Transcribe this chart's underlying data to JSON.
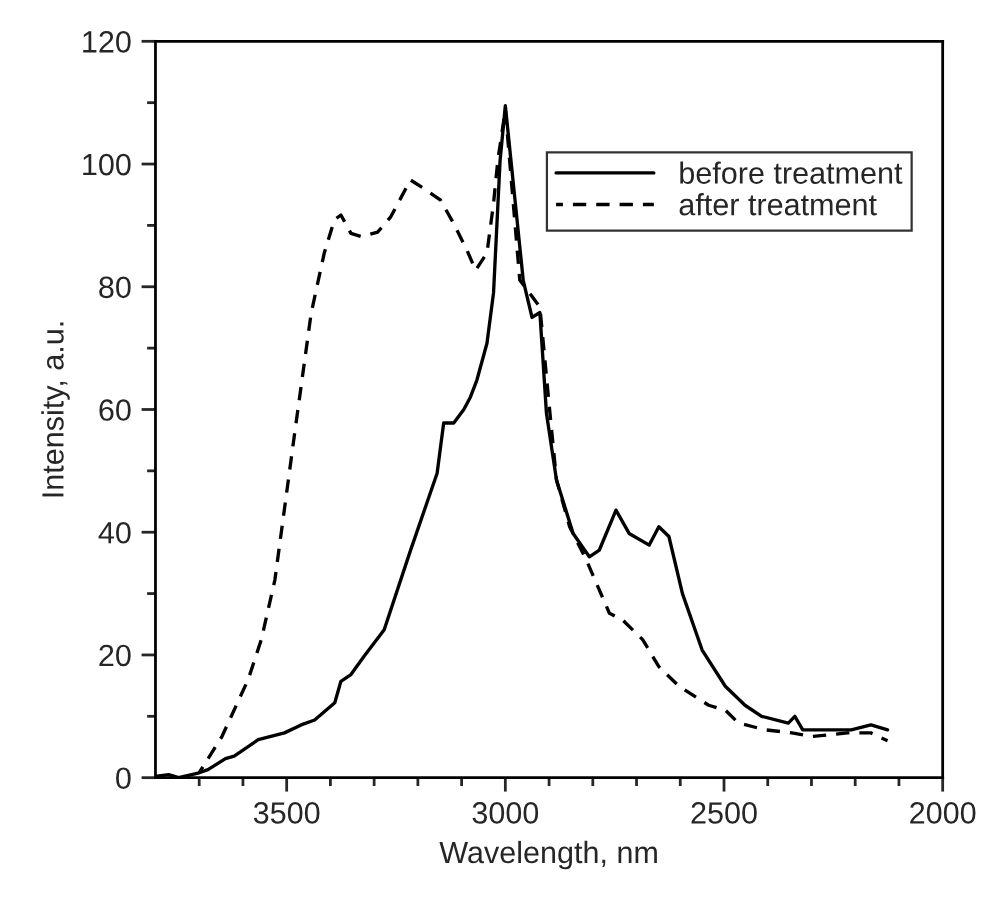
{
  "chart_data": {
    "type": "line",
    "xlabel": "Wavelength, nm",
    "ylabel": "Intensity, a.u.",
    "xlim": [
      3800,
      2000
    ],
    "ylim": [
      0,
      120
    ],
    "xticks": [
      {
        "value": 3700,
        "label": null
      },
      {
        "value": 3600,
        "label": null
      },
      3500,
      {
        "value": 3400,
        "label": null
      },
      {
        "value": 3300,
        "label": null
      },
      {
        "value": 3200,
        "label": null
      },
      {
        "value": 3100,
        "label": null
      },
      3000,
      {
        "value": 2900,
        "label": null
      },
      {
        "value": 2800,
        "label": null
      },
      {
        "value": 2700,
        "label": null
      },
      {
        "value": 2600,
        "label": null
      },
      2500,
      {
        "value": 2400,
        "label": null
      },
      {
        "value": 2300,
        "label": null
      },
      {
        "value": 2200,
        "label": null
      },
      {
        "value": 2100,
        "label": null
      },
      2000
    ],
    "yticks": [
      0,
      {
        "value": 10,
        "label": null
      },
      20,
      {
        "value": 30,
        "label": null
      },
      40,
      {
        "value": 50,
        "label": null
      },
      60,
      {
        "value": 70,
        "label": null
      },
      80,
      {
        "value": 90,
        "label": null
      },
      100,
      {
        "value": 110,
        "label": null
      },
      120
    ],
    "grid": false,
    "legend": "top right",
    "series": [
      {
        "name": "before treatment",
        "color": "#000000",
        "line_style": "solid",
        "x": [
          3800,
          3770,
          3747,
          3700,
          3680,
          3640,
          3620,
          3565,
          3505,
          3467,
          3436,
          3390,
          3376,
          3353,
          3323,
          3277,
          3217,
          3156,
          3141,
          3118,
          3095,
          3080,
          3065,
          3042,
          3027,
          3012,
          3000,
          2959,
          2939,
          2921,
          2906,
          2883,
          2845,
          2808,
          2785,
          2747,
          2717,
          2671,
          2649,
          2626,
          2595,
          2550,
          2497,
          2452,
          2414,
          2353,
          2338,
          2320,
          2209,
          2164,
          2126
        ],
        "values": [
          0.2,
          0.5,
          0,
          0.8,
          1.3,
          3.1,
          3.5,
          6.2,
          7.3,
          8.6,
          9.4,
          12.2,
          15.7,
          16.8,
          19.8,
          24.1,
          37,
          49.6,
          57.8,
          57.8,
          60,
          62,
          64.8,
          70.8,
          79,
          100.6,
          109.5,
          81,
          75,
          75.8,
          59.4,
          48.5,
          39.8,
          36,
          37.1,
          43.6,
          39.8,
          37.9,
          40.9,
          39.3,
          30,
          20.8,
          14.9,
          11.8,
          10,
          8.9,
          10,
          7.8,
          7.8,
          8.6,
          7.8
        ]
      },
      {
        "name": "after treatment",
        "color": "#000000",
        "line_style": "dashed",
        "x": [
          3700,
          3648,
          3588,
          3558,
          3527,
          3482,
          3444,
          3414,
          3391,
          3376,
          3353,
          3330,
          3292,
          3262,
          3217,
          3186,
          3148,
          3118,
          3088,
          3068,
          3042,
          3027,
          3017,
          3000,
          2967,
          2921,
          2898,
          2883,
          2853,
          2815,
          2762,
          2732,
          2686,
          2649,
          2603,
          2535,
          2497,
          2467,
          2406,
          2345,
          2300,
          2217,
          2164,
          2126
        ],
        "values": [
          0.8,
          6.7,
          16,
          22.5,
          32.2,
          56,
          75.7,
          85.5,
          90.9,
          91.7,
          88.7,
          88.2,
          88.9,
          91.4,
          97.4,
          96,
          94.1,
          90.3,
          86,
          82.7,
          85.5,
          93.6,
          100.7,
          108.8,
          81.1,
          76.7,
          59.4,
          48.5,
          40.9,
          35.5,
          26.8,
          25.7,
          22.5,
          18.1,
          14.9,
          11.8,
          11,
          8.9,
          7.8,
          7.3,
          6.7,
          7.3,
          7.3,
          6
        ]
      }
    ]
  }
}
